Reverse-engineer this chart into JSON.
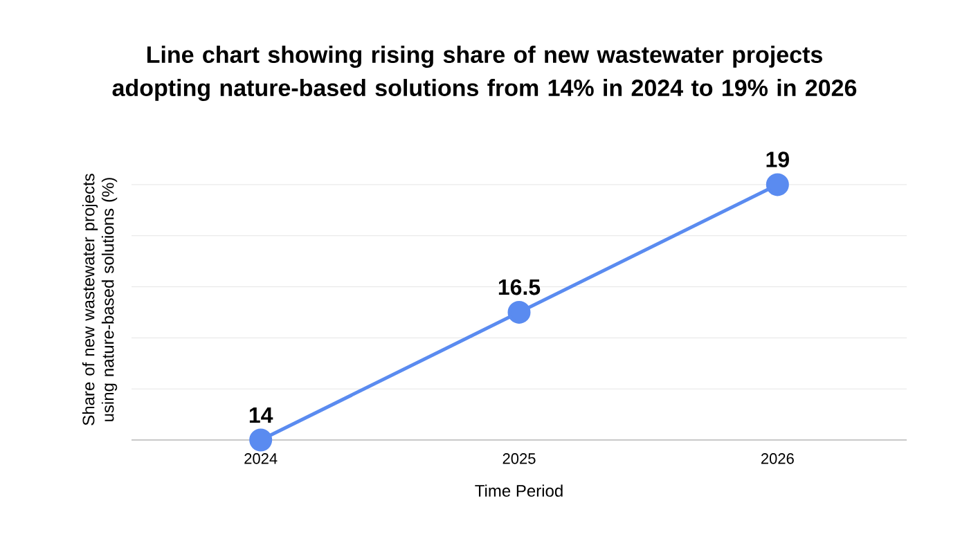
{
  "chart_data": {
    "type": "line",
    "title": "Line chart showing rising share of new wastewater projects adopting nature-based solutions from 14% in 2024 to 19% in 2026",
    "xlabel": "Time Period",
    "ylabel": "Share of new wastewater projects using nature-based solutions (%)",
    "categories": [
      "2024",
      "2025",
      "2026"
    ],
    "values": [
      14,
      16.5,
      19
    ],
    "color": "#5a8bf0",
    "tick_labels": "x",
    "grid": "y",
    "marker": "circle",
    "line_style": "solid",
    "data_labels": true
  }
}
